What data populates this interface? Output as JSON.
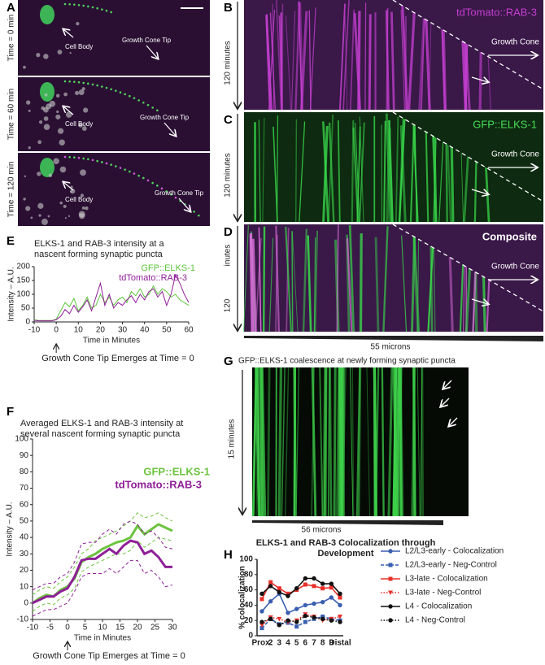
{
  "panel_labels": [
    "A",
    "B",
    "C",
    "D",
    "E",
    "F",
    "G",
    "H"
  ],
  "panel_a": {
    "frames": [
      {
        "time": "Time = 0 min",
        "cell_body": "Cell Body",
        "tip": "Growth Cone Tip"
      },
      {
        "time": "Time = 60 min",
        "cell_body": "Cell Body",
        "tip": "Growth Cone Tip"
      },
      {
        "time": "Time = 120 min",
        "cell_body": "Cell Body",
        "tip": "Growth Cone Tip"
      }
    ]
  },
  "kymographs": [
    {
      "channel": "tdTomato::RAB-3",
      "duration": [
        "120 minutes"
      ],
      "growth_cone": "Growth Cone"
    },
    {
      "channel": "GFP::ELKS-1",
      "duration": [
        "120 minutes"
      ],
      "growth_cone": "Growth Cone"
    },
    {
      "channel": "Composite",
      "duration": [
        "inutes",
        "120"
      ],
      "growth_cone": "Growth Cone"
    }
  ],
  "kymo_width": "55 microns",
  "panel_g": {
    "title": "GFP::ELKS-1 coalescence at newly forming synaptic puncta",
    "duration": "15 minutes",
    "width": "56 microns"
  },
  "chart_data": [
    {
      "type": "line",
      "title": [
        "ELKS-1 and RAB-3 intensity at a",
        "nascent forming synaptic puncta"
      ],
      "xlabel": "Time in Minutes",
      "ylabel": "Intensity – A.U.",
      "annotation": "Growth Cone Tip Emerges at Time = 0",
      "x": [
        -10,
        -8,
        -6,
        -4,
        -2,
        0,
        2,
        4,
        6,
        8,
        10,
        12,
        14,
        16,
        18,
        20,
        22,
        24,
        26,
        28,
        30,
        32,
        34,
        36,
        38,
        40,
        42,
        44,
        46,
        48,
        50,
        52,
        54,
        56,
        58,
        60
      ],
      "series": [
        {
          "name": "GFP::ELKS-1",
          "color": "#5cc43a",
          "values": [
            8,
            5,
            5,
            5,
            5,
            10,
            40,
            70,
            55,
            85,
            40,
            60,
            90,
            50,
            60,
            100,
            70,
            90,
            60,
            80,
            90,
            70,
            110,
            95,
            120,
            90,
            100,
            130,
            100,
            120,
            110,
            90,
            100,
            80,
            70,
            60
          ]
        },
        {
          "name": "tdTomato::RAB-3",
          "color": "#8e1f97",
          "values": [
            6,
            4,
            4,
            4,
            4,
            8,
            20,
            45,
            30,
            60,
            35,
            55,
            80,
            40,
            90,
            140,
            60,
            100,
            50,
            70,
            60,
            80,
            95,
            70,
            100,
            80,
            110,
            120,
            90,
            110,
            60,
            100,
            170,
            140,
            100,
            70
          ]
        }
      ],
      "xlim": [
        -10,
        60
      ],
      "xticks": [
        -10,
        0,
        10,
        20,
        30,
        40,
        50,
        60
      ],
      "ylim": [
        0,
        200
      ],
      "yticks": [
        0,
        50,
        100,
        150,
        200
      ]
    },
    {
      "type": "line",
      "title": [
        "Averaged ELKS-1 and RAB-3 intensity at",
        "several nascent forming synaptic puncta"
      ],
      "xlabel": "Time in Minutes",
      "ylabel": "Intensity – A.U.",
      "annotation": "Growth Cone Tip Emerges at Time = 0",
      "x": [
        -10,
        -8,
        -6,
        -4,
        -2,
        0,
        2,
        4,
        6,
        8,
        10,
        12,
        14,
        16,
        18,
        20,
        22,
        24,
        26,
        28,
        30
      ],
      "series": [
        {
          "name": "GFP::ELKS-1",
          "color": "#6cc43e",
          "values": [
            0,
            3,
            5,
            4,
            8,
            10,
            15,
            25,
            28,
            30,
            33,
            35,
            37,
            38,
            40,
            47,
            42,
            45,
            48,
            46,
            44
          ],
          "upper": [
            5,
            8,
            10,
            9,
            13,
            16,
            22,
            30,
            33,
            38,
            40,
            42,
            44,
            47,
            50,
            55,
            52,
            53,
            55,
            52,
            50
          ],
          "lower": [
            -5,
            -2,
            0,
            -1,
            3,
            5,
            9,
            19,
            22,
            24,
            26,
            28,
            30,
            30,
            32,
            38,
            34,
            37,
            40,
            39,
            38
          ]
        },
        {
          "name": "tdTomato::RAB-3",
          "color": "#8e1f97",
          "values": [
            0,
            2,
            4,
            4,
            7,
            9,
            16,
            26,
            27,
            27,
            30,
            33,
            30,
            35,
            38,
            37,
            30,
            32,
            28,
            22,
            22
          ],
          "upper": [
            8,
            10,
            12,
            12,
            16,
            18,
            25,
            36,
            37,
            37,
            42,
            45,
            42,
            48,
            50,
            48,
            42,
            44,
            40,
            34,
            33
          ],
          "lower": [
            -8,
            -6,
            -4,
            -4,
            -2,
            0,
            7,
            16,
            18,
            18,
            18,
            21,
            18,
            22,
            26,
            26,
            18,
            20,
            16,
            10,
            11
          ]
        }
      ],
      "xlim": [
        -10,
        30
      ],
      "xticks": [
        -10,
        -5,
        0,
        5,
        10,
        15,
        20,
        25,
        30
      ],
      "ylim": [
        -10,
        100
      ],
      "yticks": [
        -10,
        0,
        10,
        20,
        30,
        40,
        50,
        60,
        70,
        80,
        90,
        100
      ]
    },
    {
      "type": "line",
      "title": [
        "ELKS-1 and RAB-3 Colocalization through",
        "Development"
      ],
      "ylabel": "% colocalization",
      "categories": [
        "Prox.",
        "2",
        "3",
        "4",
        "5",
        "6",
        "7",
        "8",
        "9",
        "Distal"
      ],
      "series": [
        {
          "name": "L2/L3-early - Colocalization",
          "color": "#3a5fb0",
          "dash": "solid",
          "marker": "circle",
          "values": [
            32,
            45,
            55,
            30,
            35,
            40,
            42,
            44,
            50,
            40
          ]
        },
        {
          "name": "L2/L3-early - Neg-Control",
          "color": "#3a5fb0",
          "dash": "dashed",
          "marker": "square",
          "values": [
            10,
            22,
            15,
            17,
            12,
            18,
            22,
            25,
            22,
            20
          ]
        },
        {
          "name": "L3-late - Colocalization",
          "color": "#e8302a",
          "dash": "solid",
          "marker": "square",
          "values": [
            48,
            70,
            62,
            55,
            60,
            67,
            65,
            62,
            63,
            50
          ]
        },
        {
          "name": "L3-late - Neg-Control",
          "color": "#e8302a",
          "dash": "dotted",
          "marker": "triangle",
          "values": [
            14,
            24,
            22,
            18,
            20,
            28,
            25,
            20,
            22,
            25
          ]
        },
        {
          "name": "L4 - Colocalization",
          "color": "#111111",
          "dash": "solid",
          "marker": "circle",
          "values": [
            55,
            65,
            57,
            52,
            62,
            75,
            75,
            68,
            68,
            55
          ]
        },
        {
          "name": "L4 - Neg-Control",
          "color": "#111111",
          "dash": "dotted",
          "marker": "circle",
          "values": [
            18,
            22,
            14,
            20,
            18,
            26,
            24,
            22,
            20,
            18
          ]
        }
      ],
      "ylim": [
        0,
        100
      ],
      "yticks": [
        0,
        20,
        40,
        60,
        80,
        100
      ]
    }
  ]
}
